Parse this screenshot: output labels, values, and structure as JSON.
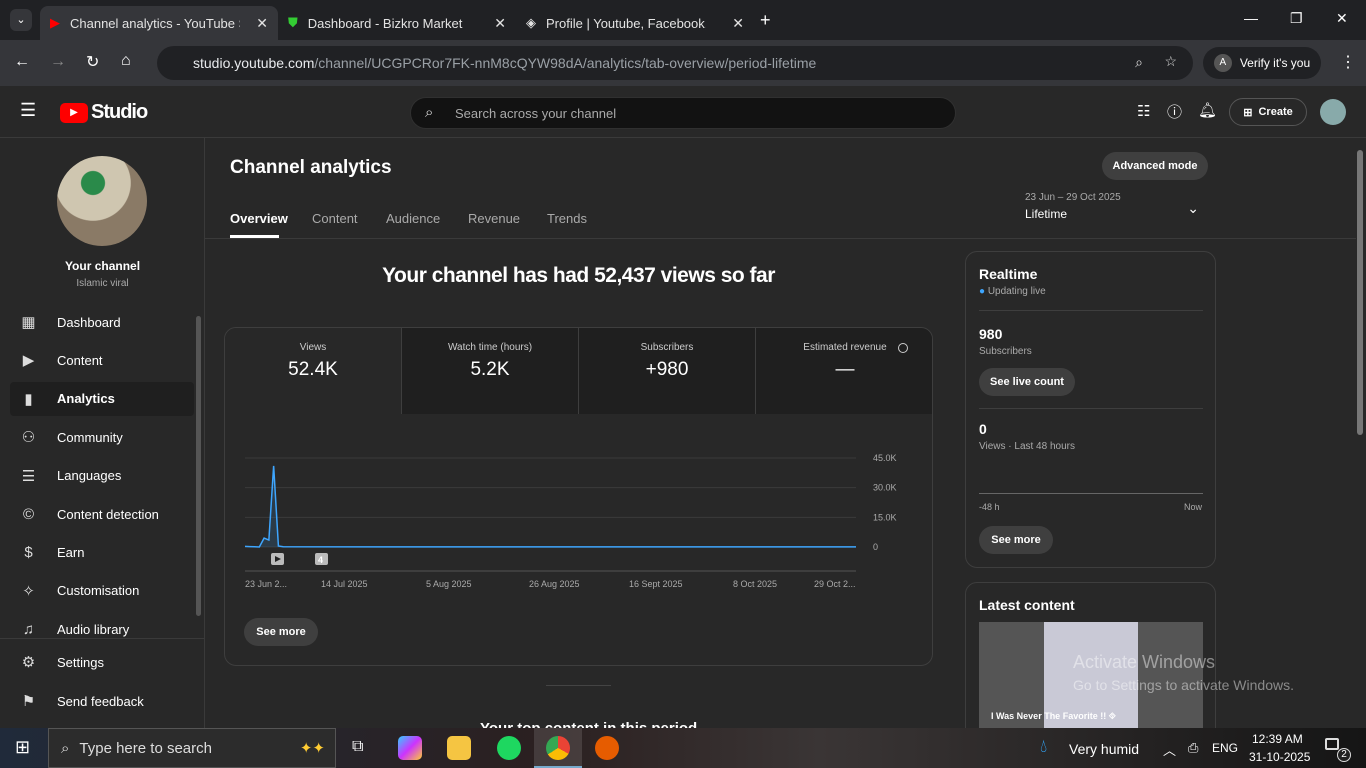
{
  "browser": {
    "tabs": [
      {
        "title": "Channel analytics - YouTube Studio"
      },
      {
        "title": "Dashboard - Bizkro Market"
      },
      {
        "title": "Profile | Youtube, Facebook, Twitter"
      }
    ],
    "url_host": "studio.youtube.com",
    "url_path": "/channel/UCGPCRor7FK-nnM8cQYW98dA/analytics/tab-overview/period-lifetime",
    "profile_label": "Verify it's you"
  },
  "header": {
    "logo": "Studio",
    "search_placeholder": "Search across your channel",
    "create_label": "Create"
  },
  "sidebar": {
    "channel_title": "Your channel",
    "channel_name": "Islamic viral",
    "items": [
      {
        "label": "Dashboard",
        "icon": "grid-icon"
      },
      {
        "label": "Content",
        "icon": "play-box-icon"
      },
      {
        "label": "Analytics",
        "icon": "bar-chart-icon"
      },
      {
        "label": "Community",
        "icon": "people-icon"
      },
      {
        "label": "Languages",
        "icon": "subtitles-icon"
      },
      {
        "label": "Content detection",
        "icon": "copyright-icon"
      },
      {
        "label": "Earn",
        "icon": "dollar-icon"
      },
      {
        "label": "Customisation",
        "icon": "wand-icon"
      },
      {
        "label": "Audio library",
        "icon": "music-icon"
      }
    ],
    "bottom": [
      {
        "label": "Settings",
        "icon": "gear-icon"
      },
      {
        "label": "Send feedback",
        "icon": "feedback-icon"
      }
    ]
  },
  "main": {
    "title": "Channel analytics",
    "advanced_label": "Advanced mode",
    "tabs": [
      "Overview",
      "Content",
      "Audience",
      "Revenue",
      "Trends"
    ],
    "period_range": "23 Jun – 29 Oct 2025",
    "period_label": "Lifetime",
    "headline": "Your channel has had 52,437 views so far",
    "kpis": [
      {
        "label": "Views",
        "value": "52.4K"
      },
      {
        "label": "Watch time (hours)",
        "value": "5.2K"
      },
      {
        "label": "Subscribers",
        "value": "+980"
      },
      {
        "label": "Estimated revenue",
        "value": "—"
      }
    ],
    "see_more": "See more",
    "marker_count": "4",
    "next_heading": "Your top content in this period"
  },
  "chart_data": {
    "type": "line",
    "series": [
      {
        "dates": [
          "23 Jun 2025",
          "24 Jun 2025",
          "25 Jun 2025",
          "26 Jun 2025",
          "27 Jun 2025",
          "28 Jun 2025",
          "29 Jun 2025",
          "30 Jun 2025",
          "1 Jul 2025",
          "29 Oct 2025"
        ],
        "values": [
          300,
          200,
          100,
          0,
          4500,
          3500,
          41000,
          500,
          100,
          50
        ]
      }
    ],
    "yticks": [
      "45.0K",
      "30.0K",
      "15.0K",
      "0"
    ],
    "ylim": [
      0,
      45000
    ],
    "xticks": [
      "23 Jun 2...",
      "14 Jul 2025",
      "5 Aug 2025",
      "26 Aug 2025",
      "16 Sept 2025",
      "8 Oct 2025",
      "29 Oct 2..."
    ],
    "xlim": [
      "23 Jun 2025",
      "29 Oct 2025"
    ],
    "grid": true,
    "color": "#3ea6ff"
  },
  "realtime": {
    "title": "Realtime",
    "status": "Updating live",
    "subs_value": "980",
    "subs_label": "Subscribers",
    "live_btn": "See live count",
    "views_value": "0",
    "views_label": "Views · Last 48 hours",
    "axis_start": "-48 h",
    "axis_end": "Now",
    "see_more": "See more"
  },
  "latest": {
    "title": "Latest content",
    "video_title": "I Was Never The Favorite !! ⯑"
  },
  "watermark": {
    "line1": "Activate Windows",
    "line2": "Go to Settings to activate Windows."
  },
  "taskbar": {
    "search_placeholder": "Type here to search",
    "weather": "Very humid",
    "lang": "ENG",
    "time": "12:39 AM",
    "date": "31-10-2025",
    "notif_count": "2"
  }
}
